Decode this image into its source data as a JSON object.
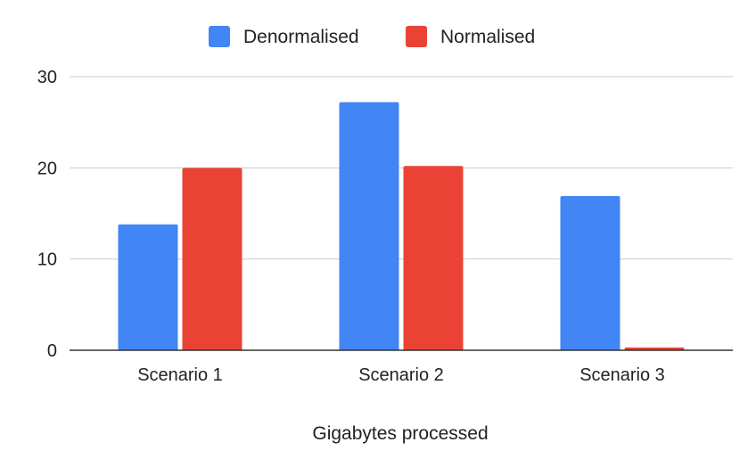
{
  "chart_data": {
    "type": "bar",
    "categories": [
      "Scenario 1",
      "Scenario 2",
      "Scenario 3"
    ],
    "series": [
      {
        "name": "Denormalised",
        "values": [
          13.8,
          27.2,
          16.9
        ],
        "color": "#4285f4"
      },
      {
        "name": "Normalised",
        "values": [
          20.0,
          20.2,
          0.3
        ],
        "color": "#ea4335"
      }
    ],
    "xlabel": "Gigabytes processed",
    "ylabel": "",
    "ylim": [
      0,
      30
    ],
    "yticks": [
      "0",
      "10",
      "20",
      "30"
    ],
    "grid": true,
    "legend_position": "top"
  }
}
